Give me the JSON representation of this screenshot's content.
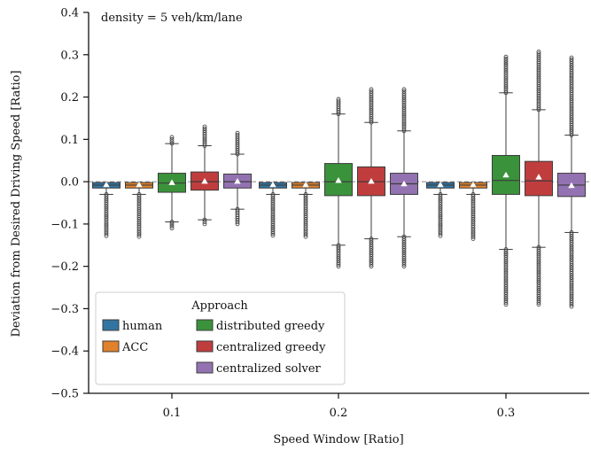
{
  "chart_data": {
    "type": "box",
    "title": "",
    "annotation": "density = 5 veh/km/lane",
    "xlabel": "Speed Window [Ratio]",
    "ylabel": "Deviation from Desired Driving Speed [Ratio]",
    "categories": [
      "0.1",
      "0.2",
      "0.3"
    ],
    "ylim": [
      -0.5,
      0.4
    ],
    "yticks": [
      0.4,
      0.3,
      0.2,
      0.1,
      0.0,
      -0.1,
      -0.2,
      -0.3,
      -0.4,
      -0.5
    ],
    "ytick_labels": [
      "0.4",
      "0.3",
      "0.2",
      "0.1",
      "0.0",
      "−0.1",
      "−0.2",
      "−0.3",
      "−0.4",
      "−0.5"
    ],
    "reference_line": 0.0,
    "legend": {
      "title": "Approach",
      "placement": "lower-left",
      "columns": [
        [
          "human",
          "ACC"
        ],
        [
          "distributed greedy",
          "centralized greedy",
          "centralized solver"
        ]
      ]
    },
    "series": [
      {
        "name": "human",
        "color": "#3274a1",
        "boxes": [
          {
            "q1": -0.015,
            "median": -0.008,
            "q3": -0.002,
            "whislo": -0.03,
            "whishi": -0.002,
            "mean": -0.008,
            "outlier_lo": -0.128,
            "outlier_hi": null
          },
          {
            "q1": -0.015,
            "median": -0.008,
            "q3": -0.002,
            "whislo": -0.03,
            "whishi": -0.002,
            "mean": -0.008,
            "outlier_lo": -0.127,
            "outlier_hi": null
          },
          {
            "q1": -0.015,
            "median": -0.008,
            "q3": -0.002,
            "whislo": -0.03,
            "whishi": -0.002,
            "mean": -0.008,
            "outlier_lo": -0.128,
            "outlier_hi": null
          }
        ]
      },
      {
        "name": "ACC",
        "color": "#e1812c",
        "boxes": [
          {
            "q1": -0.015,
            "median": -0.008,
            "q3": -0.002,
            "whislo": -0.03,
            "whishi": -0.002,
            "mean": -0.008,
            "outlier_lo": -0.13,
            "outlier_hi": null
          },
          {
            "q1": -0.015,
            "median": -0.008,
            "q3": -0.002,
            "whislo": -0.03,
            "whishi": -0.002,
            "mean": -0.008,
            "outlier_lo": -0.13,
            "outlier_hi": null
          },
          {
            "q1": -0.015,
            "median": -0.008,
            "q3": -0.002,
            "whislo": -0.03,
            "whishi": -0.002,
            "mean": -0.008,
            "outlier_lo": -0.135,
            "outlier_hi": null
          }
        ]
      },
      {
        "name": "distributed greedy",
        "color": "#3a923a",
        "boxes": [
          {
            "q1": -0.025,
            "median": -0.003,
            "q3": 0.02,
            "whislo": -0.095,
            "whishi": 0.09,
            "mean": -0.003,
            "outlier_lo": -0.11,
            "outlier_hi": 0.105
          },
          {
            "q1": -0.033,
            "median": 0.0,
            "q3": 0.043,
            "whislo": -0.15,
            "whishi": 0.16,
            "mean": 0.002,
            "outlier_lo": -0.2,
            "outlier_hi": 0.195
          },
          {
            "q1": -0.03,
            "median": 0.003,
            "q3": 0.062,
            "whislo": -0.16,
            "whishi": 0.21,
            "mean": 0.015,
            "outlier_lo": -0.29,
            "outlier_hi": 0.295
          }
        ]
      },
      {
        "name": "centralized greedy",
        "color": "#c03d3e",
        "boxes": [
          {
            "q1": -0.02,
            "median": 0.0,
            "q3": 0.023,
            "whislo": -0.09,
            "whishi": 0.085,
            "mean": 0.0,
            "outlier_lo": -0.1,
            "outlier_hi": 0.13
          },
          {
            "q1": -0.033,
            "median": 0.0,
            "q3": 0.035,
            "whislo": -0.135,
            "whishi": 0.14,
            "mean": 0.0,
            "outlier_lo": -0.2,
            "outlier_hi": 0.218
          },
          {
            "q1": -0.033,
            "median": 0.002,
            "q3": 0.048,
            "whislo": -0.155,
            "whishi": 0.17,
            "mean": 0.01,
            "outlier_lo": -0.29,
            "outlier_hi": 0.307
          }
        ]
      },
      {
        "name": "centralized solver",
        "color": "#9372b2",
        "boxes": [
          {
            "q1": -0.015,
            "median": 0.0,
            "q3": 0.018,
            "whislo": -0.065,
            "whishi": 0.065,
            "mean": 0.0,
            "outlier_lo": -0.1,
            "outlier_hi": 0.115
          },
          {
            "q1": -0.03,
            "median": -0.005,
            "q3": 0.02,
            "whislo": -0.13,
            "whishi": 0.12,
            "mean": -0.006,
            "outlier_lo": -0.2,
            "outlier_hi": 0.218
          },
          {
            "q1": -0.035,
            "median": -0.008,
            "q3": 0.02,
            "whislo": -0.12,
            "whishi": 0.11,
            "mean": -0.01,
            "outlier_lo": -0.295,
            "outlier_hi": 0.293
          }
        ]
      }
    ]
  }
}
